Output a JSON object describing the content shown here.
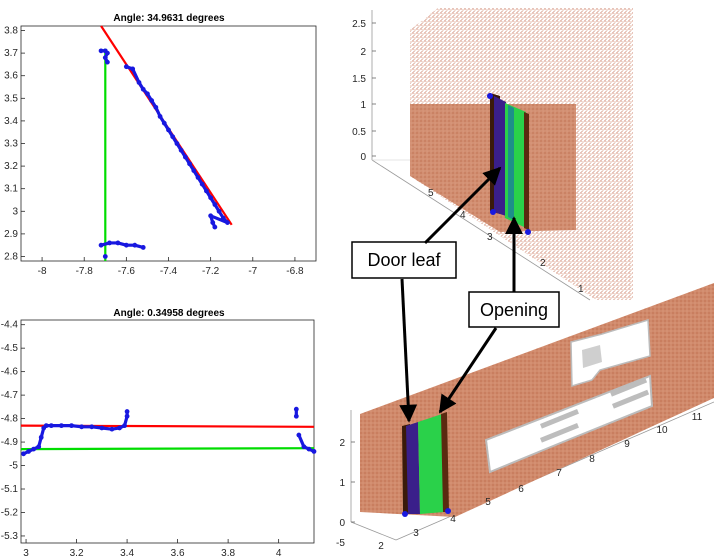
{
  "colors": {
    "fit_line": "#ff0000",
    "door_line": "#00dd00",
    "points": "#1818e0",
    "wall": "#cd7a58",
    "door_leaf": "#3a1f8a",
    "opening": "#2ad14a"
  },
  "chart_data": [
    {
      "type": "line",
      "title": "Angle: 34.9631 degrees",
      "xlim": [
        -8.1,
        -6.7
      ],
      "ylim": [
        2.78,
        3.82
      ],
      "x_ticks": [
        "-8",
        "-7.8",
        "-7.6",
        "-7.4",
        "-7.2",
        "-7",
        "-6.8"
      ],
      "x_tick_values": [
        -8,
        -7.8,
        -7.6,
        -7.4,
        -7.2,
        -7,
        -6.8
      ],
      "y_ticks": [
        "2.8",
        "2.9",
        "3",
        "3.1",
        "3.2",
        "3.3",
        "3.4",
        "3.5",
        "3.6",
        "3.7",
        "3.8"
      ],
      "y_tick_values": [
        2.8,
        2.9,
        3.0,
        3.1,
        3.2,
        3.3,
        3.4,
        3.5,
        3.6,
        3.7,
        3.8
      ],
      "series": [
        {
          "style": "line",
          "color": "red",
          "x": [
            -7.72,
            -7.1
          ],
          "y": [
            3.82,
            2.94
          ]
        },
        {
          "style": "line",
          "color": "green",
          "x": [
            -7.7,
            -7.7
          ],
          "y": [
            3.72,
            2.78
          ]
        },
        {
          "style": "points",
          "color": "blue",
          "x": [
            -7.72,
            -7.7,
            -7.69,
            -7.7,
            -7.69,
            -7.6,
            -7.57,
            -7.54,
            -7.52,
            -7.5,
            -7.48,
            -7.46,
            -7.44,
            -7.42,
            -7.4,
            -7.38,
            -7.36,
            -7.34,
            -7.32,
            -7.3,
            -7.28,
            -7.26,
            -7.24,
            -7.22,
            -7.2,
            -7.18,
            -7.16,
            -7.14,
            -7.12,
            -7.2,
            -7.19,
            -7.18,
            -7.72,
            -7.68,
            -7.64,
            -7.6,
            -7.56,
            -7.52,
            -7.7
          ],
          "y": [
            3.71,
            3.71,
            3.7,
            3.68,
            3.66,
            3.64,
            3.63,
            3.57,
            3.54,
            3.52,
            3.49,
            3.46,
            3.42,
            3.39,
            3.36,
            3.33,
            3.3,
            3.27,
            3.24,
            3.21,
            3.18,
            3.15,
            3.12,
            3.09,
            3.06,
            3.03,
            3.0,
            2.97,
            2.95,
            2.98,
            2.95,
            2.93,
            2.85,
            2.86,
            2.86,
            2.85,
            2.85,
            2.84,
            2.8
          ]
        }
      ]
    },
    {
      "type": "line",
      "title": "Angle: 0.34958 degrees",
      "xlim": [
        2.98,
        4.14
      ],
      "ylim": [
        -5.33,
        -4.38
      ],
      "x_ticks": [
        "3",
        "3.2",
        "3.4",
        "3.6",
        "3.8",
        "4"
      ],
      "x_tick_values": [
        3.0,
        3.2,
        3.4,
        3.6,
        3.8,
        4.0
      ],
      "y_ticks": [
        "-4.4",
        "-4.5",
        "-4.6",
        "-4.7",
        "-4.8",
        "-4.9",
        "-5",
        "-5.1",
        "-5.2",
        "-5.3"
      ],
      "y_tick_values": [
        -4.4,
        -4.5,
        -4.6,
        -4.7,
        -4.8,
        -4.9,
        -5.0,
        -5.1,
        -5.2,
        -5.3
      ],
      "series": [
        {
          "style": "line",
          "color": "red",
          "x": [
            2.98,
            4.14
          ],
          "y": [
            -4.83,
            -4.835
          ]
        },
        {
          "style": "line",
          "color": "green",
          "x": [
            2.98,
            4.14
          ],
          "y": [
            -4.93,
            -4.926
          ]
        },
        {
          "style": "points",
          "color": "blue",
          "x": [
            2.99,
            3.01,
            3.03,
            3.05,
            3.06,
            3.07,
            3.08,
            3.1,
            3.14,
            3.18,
            3.22,
            3.26,
            3.3,
            3.34,
            3.37,
            3.39,
            3.4,
            3.4,
            4.07,
            4.07,
            4.08,
            4.1,
            4.12,
            4.14
          ],
          "y": [
            -4.95,
            -4.94,
            -4.93,
            -4.92,
            -4.88,
            -4.84,
            -4.83,
            -4.83,
            -4.83,
            -4.83,
            -4.835,
            -4.835,
            -4.84,
            -4.845,
            -4.84,
            -4.83,
            -4.79,
            -4.77,
            -4.76,
            -4.79,
            -4.87,
            -4.92,
            -4.93,
            -4.94
          ]
        }
      ]
    },
    {
      "type": "scatter",
      "title": "",
      "z_ticks": [
        "0",
        "0.5",
        "1",
        "1.5",
        "2",
        "2.5"
      ],
      "depth_ticks": [
        "5",
        "4",
        "3",
        "2",
        "1"
      ],
      "description_series": [
        "wall",
        "door leaf",
        "opening"
      ]
    },
    {
      "type": "scatter",
      "title": "",
      "z_ticks": [
        "0",
        "1",
        "2"
      ],
      "x_ticks": [
        "2",
        "3",
        "4",
        "5",
        "6",
        "7",
        "8",
        "9",
        "10",
        "11"
      ],
      "y_ticks": [
        "-5"
      ],
      "description_series": [
        "wall",
        "door leaf",
        "opening"
      ]
    }
  ],
  "annotations": {
    "door_leaf": "Door leaf",
    "opening": "Opening"
  }
}
